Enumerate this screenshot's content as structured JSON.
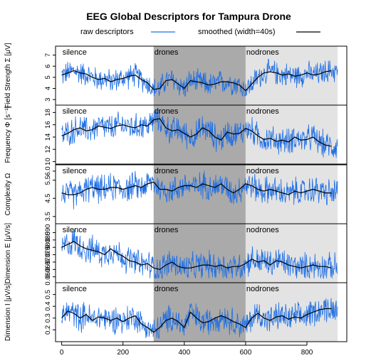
{
  "chart_data": {
    "type": "line",
    "title": "EEG Global Descriptors for Tampura Drone",
    "legend": {
      "position": "top",
      "items": [
        {
          "label": "raw descriptors",
          "color": "#1f6fe5"
        },
        {
          "label": "smoothed (width=40s)",
          "color": "#000000"
        }
      ]
    },
    "colors": {
      "raw": "#1f6fe5",
      "smooth": "#000000",
      "drones_band": "#aaaaaa",
      "nodrones_band": "#e3e3e3"
    },
    "x": {
      "range": [
        -20,
        930
      ],
      "ticks": [
        0,
        200,
        400,
        600,
        800
      ],
      "tick_labels": [
        "0",
        "200",
        "400",
        "600",
        "800"
      ]
    },
    "segments": [
      {
        "label": "silence",
        "start": 0,
        "end": 300,
        "shade": "none"
      },
      {
        "label": "drones",
        "start": 300,
        "end": 600,
        "shade": "dark"
      },
      {
        "label": "nodrones",
        "start": 600,
        "end": 900,
        "shade": "light"
      }
    ],
    "panels": [
      {
        "ylabel": "Field Strength Σ [μV]",
        "ylim": [
          2.5,
          7.8
        ],
        "yticks": [
          3,
          4,
          5,
          6,
          7
        ],
        "ytick_labels": [
          "3",
          "4",
          "5",
          "6",
          "7"
        ],
        "raw_range": [
          3.3,
          7.2
        ],
        "smooth_x": [
          0,
          20,
          40,
          60,
          80,
          100,
          120,
          140,
          160,
          180,
          200,
          220,
          240,
          260,
          280,
          300,
          320,
          340,
          360,
          380,
          400,
          420,
          440,
          460,
          480,
          500,
          520,
          540,
          560,
          580,
          600,
          620,
          640,
          660,
          680,
          700,
          720,
          740,
          760,
          780,
          800,
          820,
          840,
          860,
          880
        ],
        "smooth_y": [
          5.2,
          5.4,
          5.6,
          5.4,
          5.3,
          5.0,
          4.8,
          4.9,
          4.6,
          4.8,
          4.9,
          5.1,
          5.2,
          4.8,
          4.5,
          3.9,
          4.0,
          4.7,
          4.8,
          4.4,
          4.0,
          4.7,
          4.6,
          4.5,
          4.3,
          4.4,
          4.6,
          4.6,
          4.5,
          4.3,
          3.8,
          4.4,
          5.0,
          5.4,
          5.5,
          5.4,
          5.2,
          5.3,
          5.1,
          5.2,
          5.4,
          5.2,
          5.3,
          5.5,
          5.6
        ]
      },
      {
        "ylabel": "Frequency Φ [s⁻¹]",
        "ylim": [
          9.6,
          19.2
        ],
        "yticks": [
          10,
          12,
          14,
          16,
          18
        ],
        "ytick_labels": [
          "10",
          "12",
          "14",
          "16",
          "18"
        ],
        "raw_range": [
          10.5,
          18.5
        ],
        "smooth_x": [
          0,
          20,
          40,
          60,
          80,
          100,
          120,
          140,
          160,
          180,
          200,
          220,
          240,
          260,
          280,
          300,
          320,
          340,
          360,
          380,
          400,
          420,
          440,
          460,
          480,
          500,
          520,
          540,
          560,
          580,
          600,
          620,
          640,
          660,
          680,
          700,
          720,
          740,
          760,
          780,
          800,
          820,
          840,
          860,
          880
        ],
        "smooth_y": [
          14.2,
          14.6,
          15.2,
          15.5,
          15.0,
          15.2,
          15.8,
          15.6,
          15.4,
          15.8,
          16.0,
          15.7,
          15.5,
          16.0,
          15.8,
          16.8,
          17.0,
          15.5,
          15.0,
          15.2,
          14.6,
          14.0,
          14.5,
          15.5,
          15.0,
          14.0,
          13.5,
          14.8,
          14.5,
          14.6,
          15.4,
          15.0,
          14.2,
          13.6,
          13.8,
          13.3,
          13.5,
          13.2,
          14.0,
          13.5,
          13.6,
          14.0,
          13.2,
          12.7,
          12.5
        ]
      },
      {
        "ylabel": "Complexity Ω",
        "ylim": [
          3.1,
          6.35
        ],
        "yticks": [
          3.5,
          4.5,
          5.5,
          6.0
        ],
        "ytick_labels": [
          "3.5",
          "4.5",
          "5.5",
          "6.0"
        ],
        "raw_range": [
          3.4,
          6.2
        ],
        "smooth_x": [
          0,
          20,
          40,
          60,
          80,
          100,
          120,
          140,
          160,
          180,
          200,
          220,
          240,
          260,
          280,
          300,
          320,
          340,
          360,
          380,
          400,
          420,
          440,
          460,
          480,
          500,
          520,
          540,
          560,
          580,
          600,
          620,
          640,
          660,
          680,
          700,
          720,
          740,
          760,
          780,
          800,
          820,
          840,
          860,
          880
        ],
        "smooth_y": [
          4.8,
          4.7,
          4.7,
          4.8,
          5.0,
          5.1,
          5.0,
          5.0,
          5.1,
          5.1,
          5.0,
          5.1,
          5.2,
          5.1,
          5.3,
          5.4,
          5.0,
          5.0,
          4.9,
          5.1,
          5.2,
          5.2,
          5.1,
          5.3,
          5.2,
          5.1,
          5.3,
          5.0,
          4.8,
          5.0,
          5.3,
          5.2,
          5.0,
          4.9,
          5.0,
          4.9,
          4.8,
          4.7,
          4.9,
          4.8,
          4.9,
          5.0,
          4.9,
          4.8,
          4.8
        ]
      },
      {
        "ylabel": "Dimension E [μV/s]",
        "ylim": [
          0.056,
          0.096
        ],
        "yticks": [
          0.06,
          0.065,
          0.07,
          0.075,
          0.08,
          0.085,
          0.09
        ],
        "ytick_labels": [
          "0.060",
          "0.065",
          "0.070",
          "0.075",
          "0.080",
          "0.085",
          "0.090"
        ],
        "raw_range": [
          0.059,
          0.094
        ],
        "smooth_x": [
          0,
          20,
          40,
          60,
          80,
          100,
          120,
          140,
          160,
          180,
          200,
          220,
          240,
          260,
          280,
          300,
          320,
          340,
          360,
          380,
          400,
          420,
          440,
          460,
          480,
          500,
          520,
          540,
          560,
          580,
          600,
          620,
          640,
          660,
          680,
          700,
          720,
          740,
          760,
          780,
          800,
          820,
          840,
          860,
          880
        ],
        "smooth_y": [
          0.08,
          0.082,
          0.084,
          0.081,
          0.079,
          0.078,
          0.077,
          0.075,
          0.079,
          0.076,
          0.074,
          0.071,
          0.07,
          0.068,
          0.069,
          0.066,
          0.065,
          0.068,
          0.07,
          0.067,
          0.066,
          0.066,
          0.067,
          0.068,
          0.068,
          0.067,
          0.068,
          0.066,
          0.067,
          0.067,
          0.069,
          0.072,
          0.07,
          0.071,
          0.068,
          0.071,
          0.07,
          0.068,
          0.067,
          0.066,
          0.067,
          0.068,
          0.067,
          0.067,
          0.066
        ]
      },
      {
        "ylabel": "Dimension I [μV/s]",
        "ylim": [
          0.1,
          0.6
        ],
        "yticks": [
          0.2,
          0.3,
          0.4,
          0.5
        ],
        "ytick_labels": [
          "0.2",
          "0.3",
          "0.4",
          "0.5"
        ],
        "raw_range": [
          0.13,
          0.56
        ],
        "smooth_x": [
          0,
          20,
          40,
          60,
          80,
          100,
          120,
          140,
          160,
          180,
          200,
          220,
          240,
          260,
          280,
          300,
          320,
          340,
          360,
          380,
          400,
          420,
          440,
          460,
          480,
          500,
          520,
          540,
          560,
          580,
          600,
          620,
          640,
          660,
          680,
          700,
          720,
          740,
          760,
          780,
          800,
          820,
          840,
          860,
          880
        ],
        "smooth_y": [
          0.3,
          0.36,
          0.34,
          0.3,
          0.33,
          0.28,
          0.31,
          0.3,
          0.28,
          0.3,
          0.27,
          0.3,
          0.32,
          0.25,
          0.22,
          0.18,
          0.22,
          0.28,
          0.3,
          0.27,
          0.22,
          0.35,
          0.3,
          0.26,
          0.27,
          0.3,
          0.32,
          0.3,
          0.27,
          0.25,
          0.22,
          0.3,
          0.34,
          0.3,
          0.28,
          0.31,
          0.32,
          0.29,
          0.31,
          0.3,
          0.33,
          0.35,
          0.37,
          0.38,
          0.38
        ]
      }
    ]
  }
}
